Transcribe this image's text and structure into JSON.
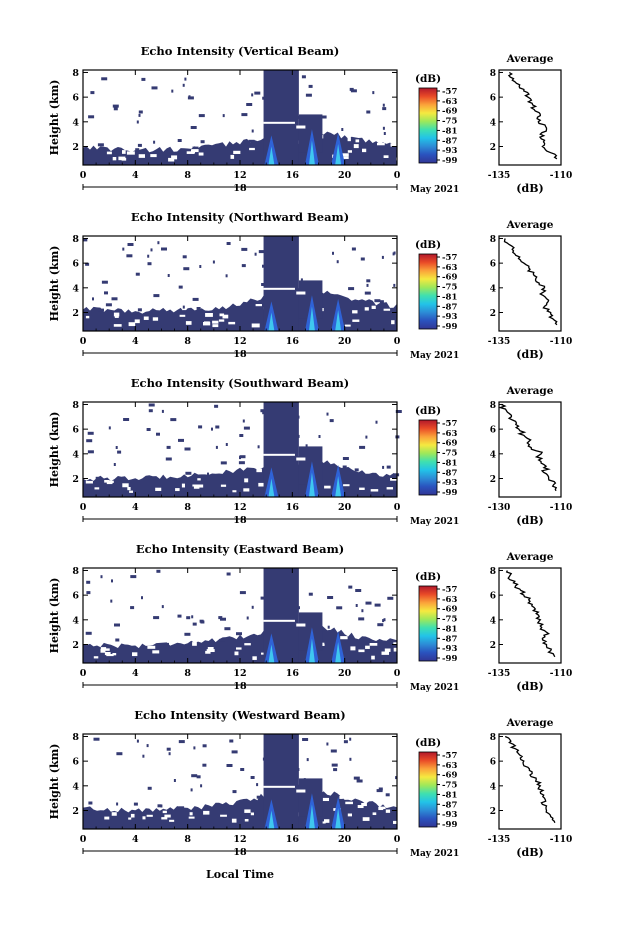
{
  "page": {
    "xlabel": "Local Time",
    "date_label": "May 2021",
    "day_label": "18",
    "colorbar_unit": "(dB)",
    "colorbar_ticks": [
      "-57",
      "-63",
      "-69",
      "-75",
      "-81",
      "-87",
      "-93",
      "-99"
    ],
    "colorbar_colors": [
      "#313695",
      "#2a52be",
      "#2c8cd6",
      "#22c3e8",
      "#3fe0b0",
      "#9ee85a",
      "#f5e940",
      "#fba23a",
      "#e94a27",
      "#b2182b"
    ],
    "background_color": "#353b73",
    "plume_color": "#2f62d6",
    "core_color": "#3fc7ef"
  },
  "chart_data": [
    {
      "type": "heatmap",
      "title": "Echo Intensity (Vertical Beam)",
      "xlabel": "",
      "ylabel": "Height (km)",
      "x_range": [
        0,
        24
      ],
      "xticks": [
        "0",
        "4",
        "8",
        "12",
        "16",
        "20",
        "0"
      ],
      "y_range": [
        0.5,
        8.2
      ],
      "yticks": [
        "2",
        "4",
        "6",
        "8"
      ],
      "colorbar_range": [
        -99,
        -57
      ],
      "base_top_km": [
        [
          0,
          2.0
        ],
        [
          4,
          1.7
        ],
        [
          8,
          1.8
        ],
        [
          11,
          2.2
        ],
        [
          13,
          2.5
        ],
        [
          16,
          3.5
        ],
        [
          19,
          3.0
        ],
        [
          21,
          2.6
        ],
        [
          24,
          2.2
        ]
      ],
      "plume_hours": [
        13.8,
        16.5
      ],
      "side_panel": {
        "title": "Average",
        "xlabel": "(dB)",
        "xticks": [
          "-135",
          "-110"
        ],
        "x_range": [
          -138,
          -108
        ],
        "yticks": [
          "2",
          "4",
          "6",
          "8"
        ],
        "heights_km": [
          1.0,
          1.5,
          2.0,
          2.5,
          3.0,
          3.5,
          4.0,
          4.5,
          5.0,
          5.5,
          6.0,
          6.5,
          7.0,
          7.5,
          8.0
        ],
        "values_db": [
          -110,
          -113,
          -117,
          -116,
          -118,
          -115,
          -119,
          -118,
          -121,
          -122,
          -124,
          -126,
          -128,
          -131,
          -133
        ]
      }
    },
    {
      "type": "heatmap",
      "title": "Echo Intensity (Northward Beam)",
      "xlabel": "",
      "ylabel": "Height (km)",
      "x_range": [
        0,
        24
      ],
      "xticks": [
        "0",
        "4",
        "8",
        "12",
        "16",
        "20",
        "0"
      ],
      "y_range": [
        0.5,
        8.2
      ],
      "yticks": [
        "2",
        "4",
        "6",
        "8"
      ],
      "colorbar_range": [
        -99,
        -57
      ],
      "base_top_km": [
        [
          0,
          2.3
        ],
        [
          4,
          2.1
        ],
        [
          8,
          2.2
        ],
        [
          11,
          2.5
        ],
        [
          13,
          3.0
        ],
        [
          16,
          4.2
        ],
        [
          19,
          3.5
        ],
        [
          21,
          3.0
        ],
        [
          24,
          2.5
        ]
      ],
      "plume_hours": [
        13.8,
        16.5
      ],
      "side_panel": {
        "title": "Average",
        "xlabel": "(dB)",
        "xticks": [
          "-135",
          "-110"
        ],
        "x_range": [
          -138,
          -108
        ],
        "yticks": [
          "2",
          "4",
          "6",
          "8"
        ],
        "heights_km": [
          1.0,
          1.5,
          2.0,
          2.5,
          3.0,
          3.5,
          4.0,
          4.5,
          5.0,
          5.5,
          6.0,
          6.5,
          7.0,
          7.5,
          8.0
        ],
        "values_db": [
          -110,
          -112,
          -113,
          -116,
          -114,
          -118,
          -116,
          -120,
          -121,
          -123,
          -126,
          -128,
          -131,
          -133,
          -135
        ]
      }
    },
    {
      "type": "heatmap",
      "title": "Echo Intensity (Southward Beam)",
      "xlabel": "",
      "ylabel": "Height (km)",
      "x_range": [
        0,
        24
      ],
      "xticks": [
        "0",
        "4",
        "8",
        "12",
        "16",
        "20",
        "0"
      ],
      "y_range": [
        0.5,
        8.2
      ],
      "yticks": [
        "2",
        "4",
        "6",
        "8"
      ],
      "colorbar_range": [
        -99,
        -57
      ],
      "base_top_km": [
        [
          0,
          2.0
        ],
        [
          4,
          2.0
        ],
        [
          8,
          2.3
        ],
        [
          11,
          2.5
        ],
        [
          13,
          2.8
        ],
        [
          16,
          3.8
        ],
        [
          19,
          3.2
        ],
        [
          21,
          2.6
        ],
        [
          24,
          2.2
        ]
      ],
      "plume_hours": [
        13.8,
        16.5
      ],
      "side_panel": {
        "title": "Average",
        "xlabel": "(dB)",
        "xticks": [
          "-130",
          "-110"
        ],
        "x_range": [
          -133,
          -108
        ],
        "yticks": [
          "2",
          "4",
          "6",
          "8"
        ],
        "heights_km": [
          1.0,
          1.5,
          2.0,
          2.5,
          3.0,
          3.5,
          4.0,
          4.5,
          5.0,
          5.5,
          6.0,
          6.5,
          7.0,
          7.5,
          8.0
        ],
        "values_db": [
          -110,
          -111,
          -113,
          -115,
          -114,
          -117,
          -116,
          -120,
          -121,
          -123,
          -125,
          -126,
          -128,
          -130,
          -132
        ]
      }
    },
    {
      "type": "heatmap",
      "title": "Echo Intensity (Eastward Beam)",
      "xlabel": "",
      "ylabel": "Height (km)",
      "x_range": [
        0,
        24
      ],
      "xticks": [
        "0",
        "4",
        "8",
        "12",
        "16",
        "20",
        "0"
      ],
      "y_range": [
        0.5,
        8.2
      ],
      "yticks": [
        "2",
        "4",
        "6",
        "8"
      ],
      "colorbar_range": [
        -99,
        -57
      ],
      "base_top_km": [
        [
          0,
          2.0
        ],
        [
          4,
          1.9
        ],
        [
          8,
          2.2
        ],
        [
          11,
          2.4
        ],
        [
          13,
          2.8
        ],
        [
          16,
          4.0
        ],
        [
          19,
          3.3
        ],
        [
          21,
          2.6
        ],
        [
          24,
          2.3
        ]
      ],
      "plume_hours": [
        13.8,
        16.5
      ],
      "side_panel": {
        "title": "Average",
        "xlabel": "(dB)",
        "xticks": [
          "-135",
          "-110"
        ],
        "x_range": [
          -138,
          -108
        ],
        "yticks": [
          "2",
          "4",
          "6",
          "8"
        ],
        "heights_km": [
          1.0,
          1.5,
          2.0,
          2.5,
          3.0,
          3.5,
          4.0,
          4.5,
          5.0,
          5.5,
          6.0,
          6.5,
          7.0,
          7.5,
          8.0
        ],
        "values_db": [
          -111,
          -113,
          -115,
          -117,
          -115,
          -118,
          -118,
          -120,
          -121,
          -123,
          -126,
          -128,
          -131,
          -133,
          -134
        ]
      }
    },
    {
      "type": "heatmap",
      "title": "Echo Intensity (Westward Beam)",
      "xlabel": "Local Time",
      "ylabel": "Height (km)",
      "x_range": [
        0,
        24
      ],
      "xticks": [
        "0",
        "4",
        "8",
        "12",
        "16",
        "20",
        "0"
      ],
      "y_range": [
        0.5,
        8.2
      ],
      "yticks": [
        "2",
        "4",
        "6",
        "8"
      ],
      "colorbar_range": [
        -99,
        -57
      ],
      "base_top_km": [
        [
          0,
          2.2
        ],
        [
          4,
          2.0
        ],
        [
          8,
          2.2
        ],
        [
          11,
          2.5
        ],
        [
          13,
          2.9
        ],
        [
          16,
          4.1
        ],
        [
          19,
          3.4
        ],
        [
          21,
          2.7
        ],
        [
          24,
          2.3
        ]
      ],
      "plume_hours": [
        13.8,
        16.5
      ],
      "side_panel": {
        "title": "Average",
        "xlabel": "(dB)",
        "xticks": [
          "-135",
          "-110"
        ],
        "x_range": [
          -138,
          -108
        ],
        "yticks": [
          "2",
          "4",
          "6",
          "8"
        ],
        "heights_km": [
          1.0,
          1.5,
          2.0,
          2.5,
          3.0,
          3.5,
          4.0,
          4.5,
          5.0,
          5.5,
          6.0,
          6.5,
          7.0,
          7.5,
          8.0
        ],
        "values_db": [
          -111,
          -113,
          -115,
          -117,
          -116,
          -118,
          -118,
          -120,
          -122,
          -124,
          -126,
          -128,
          -130,
          -133,
          -135
        ]
      }
    }
  ]
}
